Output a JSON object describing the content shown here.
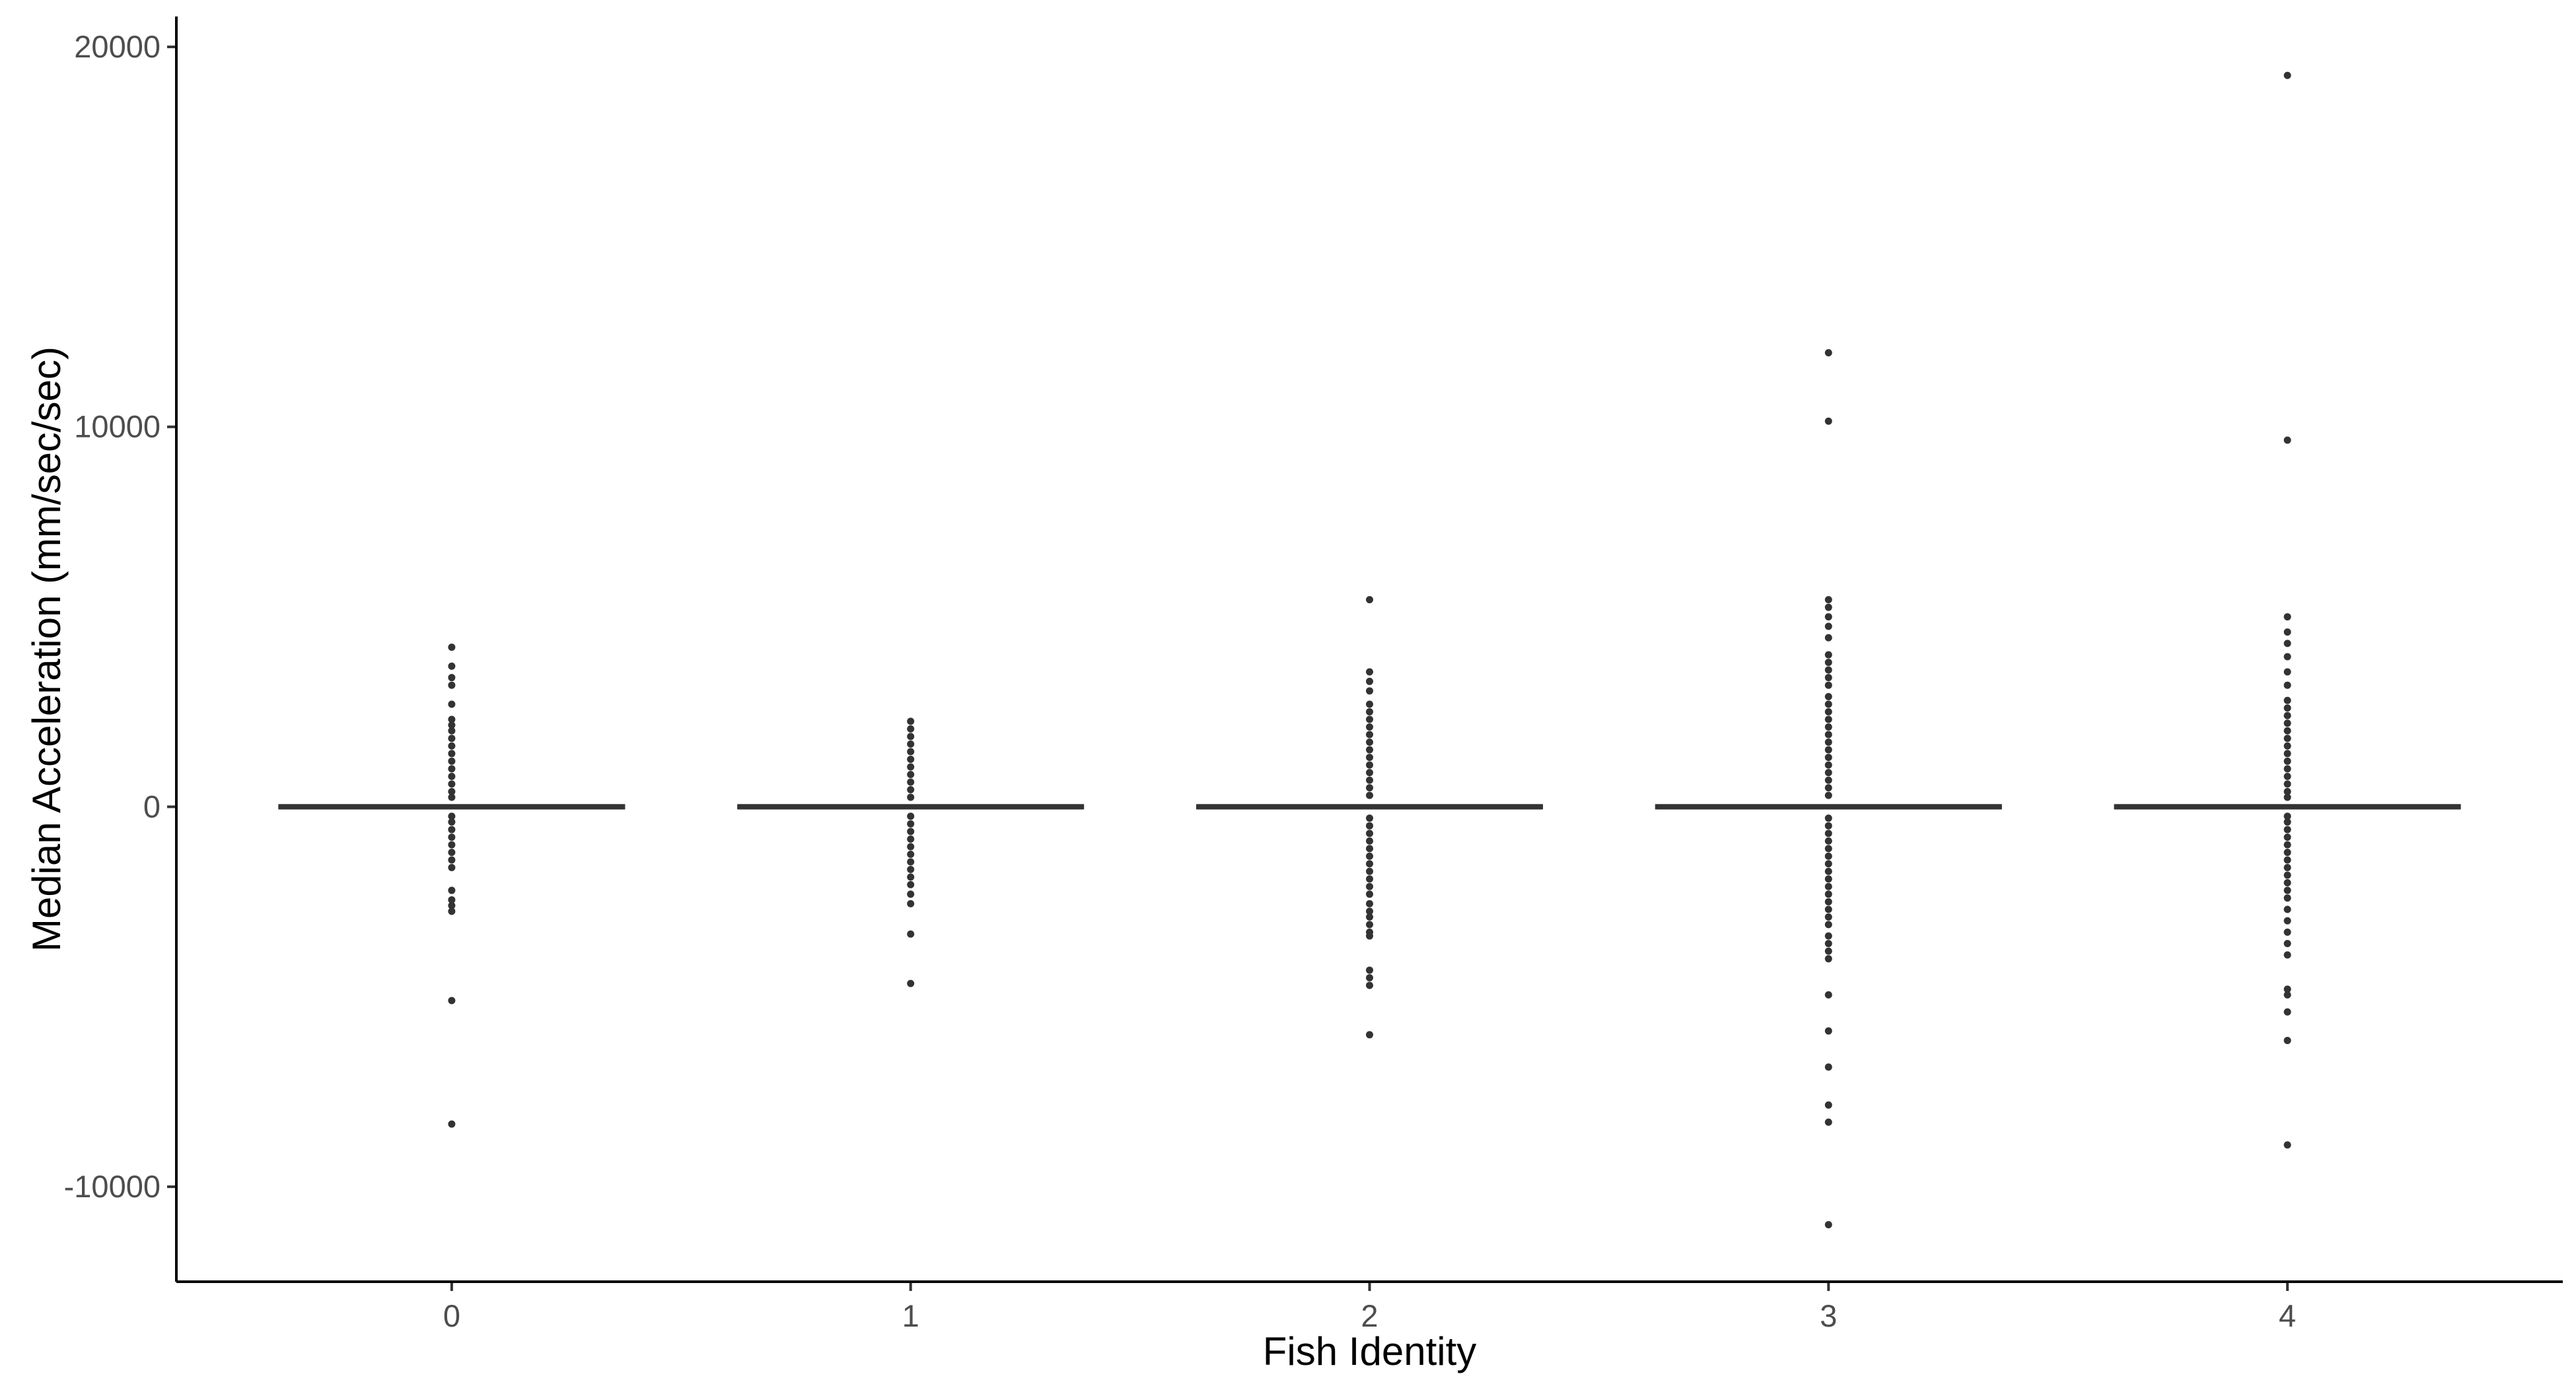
{
  "chart_data": {
    "type": "box",
    "title": "",
    "xlabel": "Fish Identity",
    "ylabel": "Median Acceleration (mm/sec/sec)",
    "categories": [
      "0",
      "1",
      "2",
      "3",
      "4"
    ],
    "ylim": [
      -12500,
      20800
    ],
    "yticks": [
      -10000,
      0,
      10000,
      20000
    ],
    "ytick_labels": [
      "-10000",
      "0",
      "10000",
      "20000"
    ],
    "grid": false,
    "legend": "none",
    "box_color": "#333333",
    "boxes": [
      {
        "category": "0",
        "q1": 0,
        "median": 0,
        "q3": 0,
        "whisker_low": 0,
        "whisker_high": 0,
        "outliers": [
          4200,
          3700,
          3400,
          3200,
          2700,
          2300,
          2150,
          2000,
          1800,
          1600,
          1400,
          1200,
          1000,
          800,
          600,
          400,
          250,
          -250,
          -400,
          -600,
          -800,
          -1000,
          -1200,
          -1400,
          -1600,
          -2200,
          -2450,
          -2600,
          -2750,
          -5100,
          -8350
        ]
      },
      {
        "category": "1",
        "q1": 0,
        "median": 0,
        "q3": 0,
        "whisker_low": 0,
        "whisker_high": 0,
        "outliers": [
          2250,
          2050,
          1850,
          1650,
          1450,
          1250,
          1050,
          850,
          650,
          450,
          250,
          -250,
          -450,
          -650,
          -850,
          -1050,
          -1250,
          -1450,
          -1650,
          -1850,
          -2050,
          -2300,
          -2550,
          -3350,
          -4650
        ]
      },
      {
        "category": "2",
        "q1": 0,
        "median": 0,
        "q3": 0,
        "whisker_low": 0,
        "whisker_high": 0,
        "outliers": [
          5450,
          3550,
          3300,
          3050,
          2700,
          2500,
          2300,
          2100,
          1900,
          1700,
          1500,
          1300,
          1100,
          900,
          700,
          500,
          300,
          -300,
          -500,
          -700,
          -900,
          -1100,
          -1300,
          -1500,
          -1700,
          -1900,
          -2100,
          -2300,
          -2550,
          -2750,
          -2900,
          -3100,
          -3300,
          -3400,
          -4300,
          -4500,
          -4700,
          -6000
        ]
      },
      {
        "category": "3",
        "q1": 0,
        "median": 0,
        "q3": 0,
        "whisker_low": 0,
        "whisker_high": 0,
        "outliers": [
          11950,
          10150,
          5450,
          5250,
          5000,
          4750,
          4450,
          4000,
          3800,
          3600,
          3400,
          3200,
          2900,
          2700,
          2500,
          2300,
          2100,
          1900,
          1700,
          1500,
          1300,
          1100,
          900,
          700,
          500,
          300,
          -300,
          -500,
          -700,
          -900,
          -1100,
          -1300,
          -1500,
          -1700,
          -1900,
          -2100,
          -2300,
          -2500,
          -2700,
          -2900,
          -3100,
          -3400,
          -3600,
          -3800,
          -4000,
          -4950,
          -5900,
          -6850,
          -7850,
          -8300,
          -11000
        ]
      },
      {
        "category": "4",
        "q1": 0,
        "median": 0,
        "q3": 0,
        "whisker_low": 0,
        "whisker_high": 0,
        "outliers": [
          19250,
          9650,
          5000,
          4600,
          4300,
          3950,
          3550,
          3200,
          2800,
          2600,
          2400,
          2200,
          2000,
          1800,
          1600,
          1400,
          1200,
          1000,
          800,
          600,
          400,
          250,
          -250,
          -400,
          -600,
          -800,
          -1000,
          -1200,
          -1400,
          -1600,
          -1800,
          -2000,
          -2200,
          -2400,
          -2700,
          -3000,
          -3300,
          -3600,
          -3900,
          -4800,
          -4950,
          -5400,
          -6150,
          -8900
        ]
      }
    ]
  }
}
